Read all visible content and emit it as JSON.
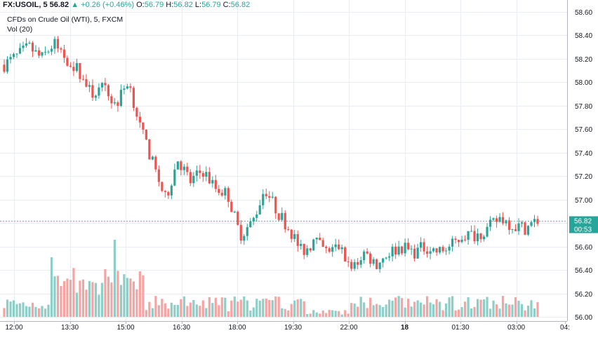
{
  "header": {
    "symbol": "FX:USOIL, 5",
    "last": "56.82",
    "change": "+0.26 (+0.46%)",
    "o_label": "O:",
    "o_value": "56.79",
    "h_label": "H:",
    "h_value": "56.82",
    "l_label": "L:",
    "l_value": "56.79",
    "c_label": "C:",
    "c_value": "56.82",
    "description": "CFDs on Crude Oil (WTI), 5, FXCM",
    "volume_label": "Vol (20)"
  },
  "price_badge": {
    "price": "56.82",
    "countdown": "00:53"
  },
  "colors": {
    "up": "#26a69a",
    "down": "#ef5350",
    "vol_up": "#8ccfc8",
    "vol_down": "#f4a5a3",
    "grid": "#e8ecf3",
    "price_line": "#5fb8ae"
  },
  "chart_data": {
    "type": "candlestick",
    "title": "CFDs on Crude Oil (WTI), 5, FXCM",
    "interval": "5m",
    "ylim": [
      56.0,
      58.6
    ],
    "y_ticks": [
      "58.60",
      "58.40",
      "58.20",
      "58.00",
      "57.80",
      "57.60",
      "57.40",
      "57.20",
      "57.00",
      "56.80",
      "56.60",
      "56.40",
      "56.20",
      "56.00"
    ],
    "x_ticks": [
      "12:00",
      "13:30",
      "15:00",
      "16:30",
      "18:00",
      "19:30",
      "22:00",
      "18",
      "01:30",
      "03:00",
      "04:"
    ],
    "current_price": 56.82,
    "ohlc_close_path": [
      58.15,
      58.22,
      58.3,
      58.2,
      58.33,
      58.2,
      58.1,
      57.9,
      57.95,
      57.8,
      58.02,
      57.6,
      57.3,
      57.0,
      57.35,
      57.15,
      57.25,
      57.1,
      57.05,
      56.7,
      56.8,
      57.1,
      56.9,
      56.75,
      56.55,
      56.65,
      56.55,
      56.6,
      56.4,
      56.55,
      56.45,
      56.55,
      56.6,
      56.55,
      56.6,
      56.55,
      56.6,
      56.7,
      56.7,
      56.75,
      56.85,
      56.78,
      56.76,
      56.82
    ],
    "volume_scale": "relative"
  }
}
